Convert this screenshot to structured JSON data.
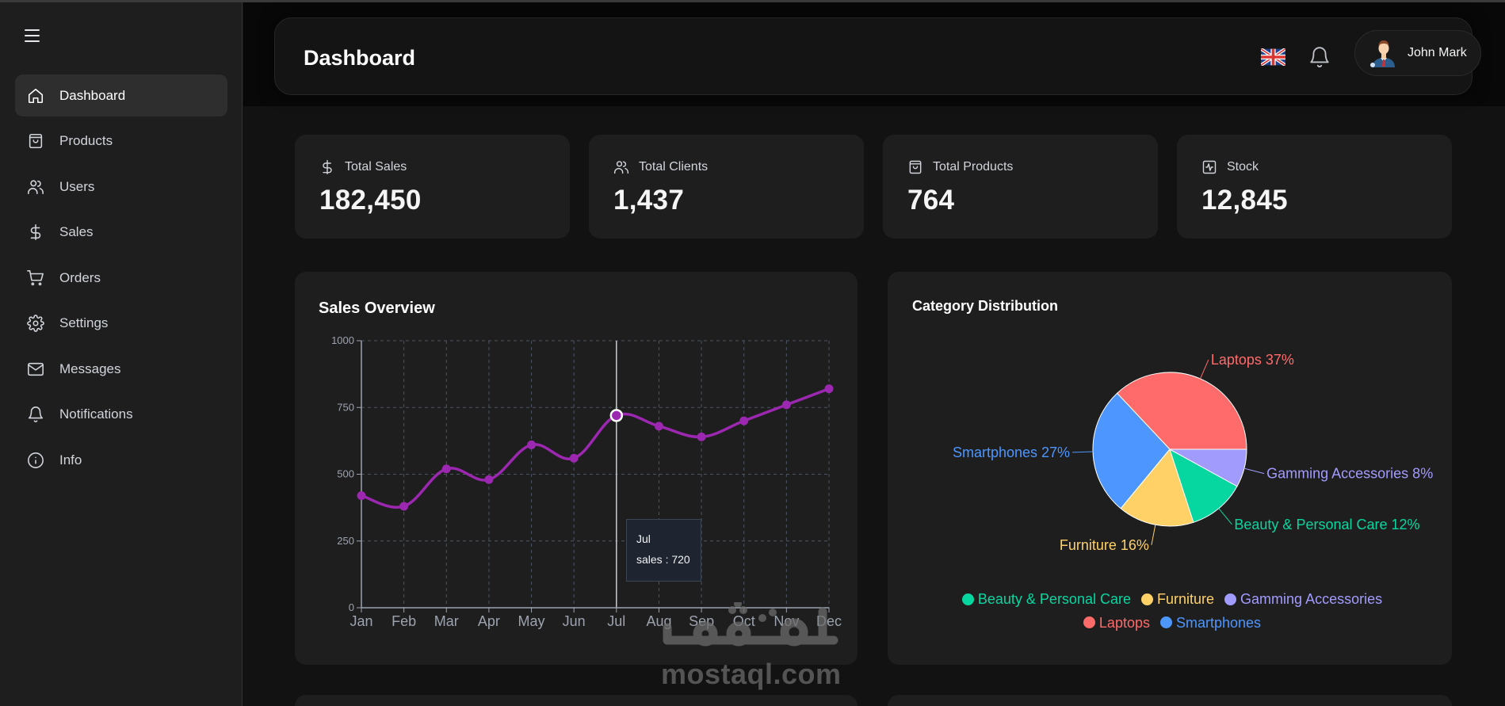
{
  "sidebar": {
    "menu_icon": "hamburger-icon",
    "items": [
      {
        "label": "Dashboard",
        "icon": "home-icon",
        "active": true
      },
      {
        "label": "Products",
        "icon": "shopping-bag-icon",
        "active": false
      },
      {
        "label": "Users",
        "icon": "users-icon",
        "active": false
      },
      {
        "label": "Sales",
        "icon": "dollar-icon",
        "active": false
      },
      {
        "label": "Orders",
        "icon": "cart-icon",
        "active": false
      },
      {
        "label": "Settings",
        "icon": "gear-icon",
        "active": false
      },
      {
        "label": "Messages",
        "icon": "mail-icon",
        "active": false
      },
      {
        "label": "Notifications",
        "icon": "bell-icon",
        "active": false
      },
      {
        "label": "Info",
        "icon": "info-icon",
        "active": false
      }
    ]
  },
  "header": {
    "title": "Dashboard",
    "language_icon": "uk-flag-icon",
    "notifications_icon": "bell-icon",
    "user": {
      "name": "John Mark",
      "avatar": "businessman-avatar"
    }
  },
  "stats": [
    {
      "label": "Total Sales",
      "value": "182,450",
      "icon": "dollar-icon"
    },
    {
      "label": "Total Clients",
      "value": "1,437",
      "icon": "users-icon"
    },
    {
      "label": "Total Products",
      "value": "764",
      "icon": "shopping-bag-icon"
    },
    {
      "label": "Stock",
      "value": "12,845",
      "icon": "activity-icon"
    }
  ],
  "sales_overview": {
    "title": "Sales Overview",
    "tooltip": {
      "label": "Jul",
      "text": "sales : 720"
    }
  },
  "category_distribution": {
    "title": "Category Distribution",
    "slice_labels": [
      {
        "text": "Laptops 37%",
        "color": "#ff6b6b"
      },
      {
        "text": "Smartphones 27%",
        "color": "#4d96ff"
      },
      {
        "text": "Gamming Accessories 8%",
        "color": "#a29bfe"
      },
      {
        "text": "Beauty & Personal Care 12%",
        "color": "#06d6a0"
      },
      {
        "text": "Furniture 16%",
        "color": "#ffd166"
      }
    ],
    "legend": [
      {
        "label": "Beauty & Personal Care",
        "color": "#06d6a0"
      },
      {
        "label": "Furniture",
        "color": "#ffd166"
      },
      {
        "label": "Gamming Accessories",
        "color": "#a29bfe"
      },
      {
        "label": "Laptops",
        "color": "#ff6b6b"
      },
      {
        "label": "Smartphones",
        "color": "#4d96ff"
      }
    ]
  },
  "watermark": {
    "text": "mostaql.com"
  },
  "colors": {
    "line": "#9c27b0",
    "panel": "#1e1e1e",
    "background": "#121212",
    "grid": "#4b5563"
  },
  "chart_data": [
    {
      "type": "line",
      "title": "Sales Overview",
      "categories": [
        "Jan",
        "Feb",
        "Mar",
        "Apr",
        "May",
        "Jun",
        "Jul",
        "Aug",
        "Sep",
        "Oct",
        "Nov",
        "Dec"
      ],
      "series": [
        {
          "name": "sales",
          "values": [
            420,
            380,
            520,
            480,
            610,
            560,
            720,
            680,
            640,
            700,
            760,
            820
          ]
        }
      ],
      "xlabel": "",
      "ylabel": "",
      "ylim": [
        0,
        1000
      ],
      "yticks": [
        0,
        250,
        500,
        750,
        1000
      ],
      "grid": true,
      "highlight": {
        "category": "Jul",
        "value": 720
      }
    },
    {
      "type": "pie",
      "title": "Category Distribution",
      "categories": [
        "Laptops",
        "Smartphones",
        "Furniture",
        "Beauty & Personal Care",
        "Gamming Accessories"
      ],
      "values": [
        37,
        27,
        16,
        12,
        8
      ],
      "colors": [
        "#ff6b6b",
        "#4d96ff",
        "#ffd166",
        "#06d6a0",
        "#a29bfe"
      ],
      "legend_position": "bottom"
    }
  ]
}
